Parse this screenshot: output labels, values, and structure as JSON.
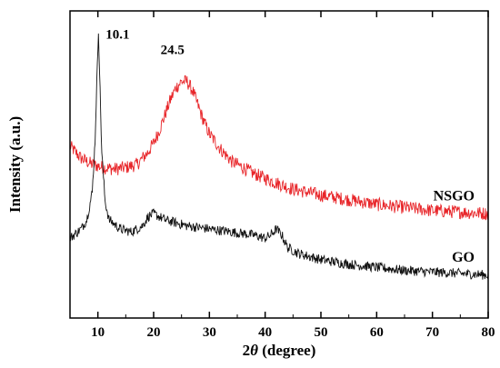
{
  "chart_data": {
    "type": "line",
    "title": "",
    "xlabel": "2θ (degree)",
    "xlabel_parts": {
      "symbol": "2",
      "var": "θ",
      "rest": " (degree)"
    },
    "ylabel": "Intensity (a.u.)",
    "xlim": [
      5,
      80
    ],
    "xticks": [
      10,
      20,
      30,
      40,
      50,
      60,
      70,
      80
    ],
    "xtick_labels": [
      "10",
      "20",
      "30",
      "40",
      "50",
      "60",
      "70",
      "80"
    ],
    "y_units": "arbitrary",
    "ylim": [
      0,
      100
    ],
    "yticks_shown": false,
    "grid": false,
    "series": [
      {
        "name": "NSGO",
        "color": "#e8262a",
        "noise": 2.2,
        "x": [
          5,
          7,
          9,
          11,
          13,
          15,
          17,
          18,
          19,
          20,
          21,
          22,
          23,
          24,
          25,
          26,
          27,
          28,
          29,
          30,
          32,
          34,
          36,
          38,
          40,
          42,
          45,
          50,
          55,
          60,
          65,
          70,
          75,
          80
        ],
        "y": [
          56,
          52,
          50,
          49,
          48.5,
          49,
          50,
          52,
          54,
          57,
          61,
          66,
          71,
          75,
          77,
          77,
          74,
          69,
          64,
          60,
          55,
          51,
          49,
          47,
          45.5,
          44,
          42,
          40,
          38.5,
          37,
          36,
          35,
          34.5,
          34
        ]
      },
      {
        "name": "GO",
        "color": "#111111",
        "noise": 1.6,
        "x": [
          5,
          7,
          8,
          9,
          9.5,
          10.1,
          10.7,
          11.3,
          12,
          14,
          16,
          18,
          19,
          20,
          21,
          22,
          24,
          26,
          30,
          34,
          38,
          40,
          41,
          42,
          43,
          44,
          46,
          50,
          55,
          60,
          65,
          70,
          75,
          80
        ],
        "y": [
          26,
          29,
          32,
          41,
          58,
          94,
          54,
          38,
          32,
          29,
          28,
          30,
          33,
          34,
          33,
          32,
          31,
          30,
          29,
          28,
          27,
          26,
          27,
          29,
          27,
          23,
          21,
          19,
          17.5,
          16.5,
          15.5,
          15,
          14.5,
          14
        ]
      }
    ],
    "annotations": [
      {
        "text": "10.1",
        "x": 10.1,
        "y": 94
      },
      {
        "text": "24.5",
        "x": 24.5,
        "y": 77
      }
    ],
    "legend": "inline labels at right end of each curve",
    "series_labels": [
      {
        "text": "NSGO",
        "series": "NSGO"
      },
      {
        "text": "GO",
        "series": "GO"
      }
    ]
  }
}
